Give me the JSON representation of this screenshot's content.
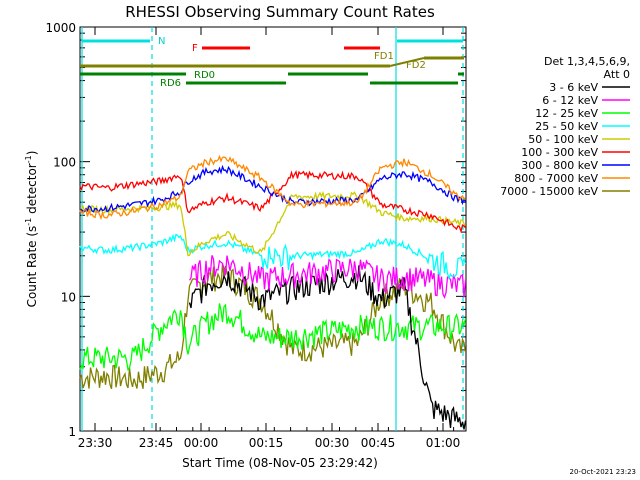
{
  "chart_data": {
    "type": "line",
    "title": "RHESSI Observing Summary Count Rates",
    "xlabel": "Start Time (08-Nov-05 23:29:42)",
    "ylabel_main": "Count Rate (s",
    "ylabel_sup1": "-1",
    "ylabel_mid": " detector",
    "ylabel_sup2": "-1",
    "ylabel_end": ")",
    "y_scale": "log",
    "ylim": [
      1,
      1000
    ],
    "x_ticks": [
      "23:30",
      "23:45",
      "00:00",
      "00:15",
      "00:30",
      "00:45",
      "01:00"
    ],
    "y_ticks": [
      "1",
      "10",
      "100",
      "1000"
    ],
    "legend_header": [
      "Det 1,3,4,5,6,9,",
      "Att 0"
    ],
    "series": [
      {
        "name": "3 - 6 keV",
        "color": "#000000",
        "values": [
          0,
          0,
          0,
          0,
          0,
          8.5,
          12.5,
          14.5,
          9.5,
          11.5,
          14.5,
          9.5,
          11.5,
          1.5,
          1.2
        ]
      },
      {
        "name": "6 - 12 keV",
        "color": "#ff00ff",
        "values": [
          0,
          0,
          0,
          0,
          0,
          13.5,
          16.5,
          18,
          13.5,
          14.5,
          16.5,
          13.5,
          14,
          13,
          12
        ]
      },
      {
        "name": "12 - 25 keV",
        "color": "#00ff00",
        "values": [
          3.5,
          3.5,
          3.5,
          6,
          8,
          4.5,
          6.5,
          8,
          5,
          5,
          6,
          6,
          6,
          6,
          6
        ]
      },
      {
        "name": "25 - 50 keV",
        "color": "#00ffff",
        "values": [
          23,
          22,
          23,
          25,
          28,
          22,
          24,
          25,
          20,
          20,
          21,
          26,
          24,
          19,
          16
        ]
      },
      {
        "name": "50 - 100 keV",
        "color": "#cccc00",
        "values": [
          45,
          44,
          45,
          46,
          48,
          21,
          26,
          29,
          21,
          55,
          56,
          42,
          38,
          38,
          35
        ]
      },
      {
        "name": "100 - 300 keV",
        "color": "#ff0000",
        "values": [
          66,
          64,
          68,
          72,
          80,
          43,
          50,
          54,
          45,
          80,
          78,
          48,
          44,
          40,
          32
        ]
      },
      {
        "name": "300 - 800 keV",
        "color": "#0000ff",
        "values": [
          45,
          45,
          48,
          52,
          60,
          72,
          85,
          88,
          65,
          50,
          52,
          75,
          82,
          70,
          52
        ]
      },
      {
        "name": "800 - 7000 keV",
        "color": "#ff8800",
        "values": [
          42,
          40,
          43,
          48,
          55,
          85,
          100,
          105,
          75,
          48,
          50,
          90,
          100,
          80,
          55
        ]
      },
      {
        "name": "7000 - 15000 keV",
        "color": "#808000",
        "values": [
          2.5,
          2.6,
          2.4,
          2.8,
          3.5,
          10.5,
          13.5,
          14.5,
          9.5,
          4,
          4.5,
          10,
          12,
          9,
          4
        ]
      }
    ],
    "x_series_fraction": [
      0,
      0.07,
      0.14,
      0.21,
      0.26,
      0.28,
      0.33,
      0.38,
      0.47,
      0.55,
      0.72,
      0.78,
      0.84,
      0.91,
      0.98
    ],
    "annotations": {
      "N": "N",
      "F": "F",
      "FD1": "FD1",
      "FD2": "FD2",
      "RD0": "RD0",
      "RD6": "RD6"
    },
    "grid": false,
    "legend_placement": "right"
  },
  "footer_timestamp": "20-Oct-2021 23:23"
}
